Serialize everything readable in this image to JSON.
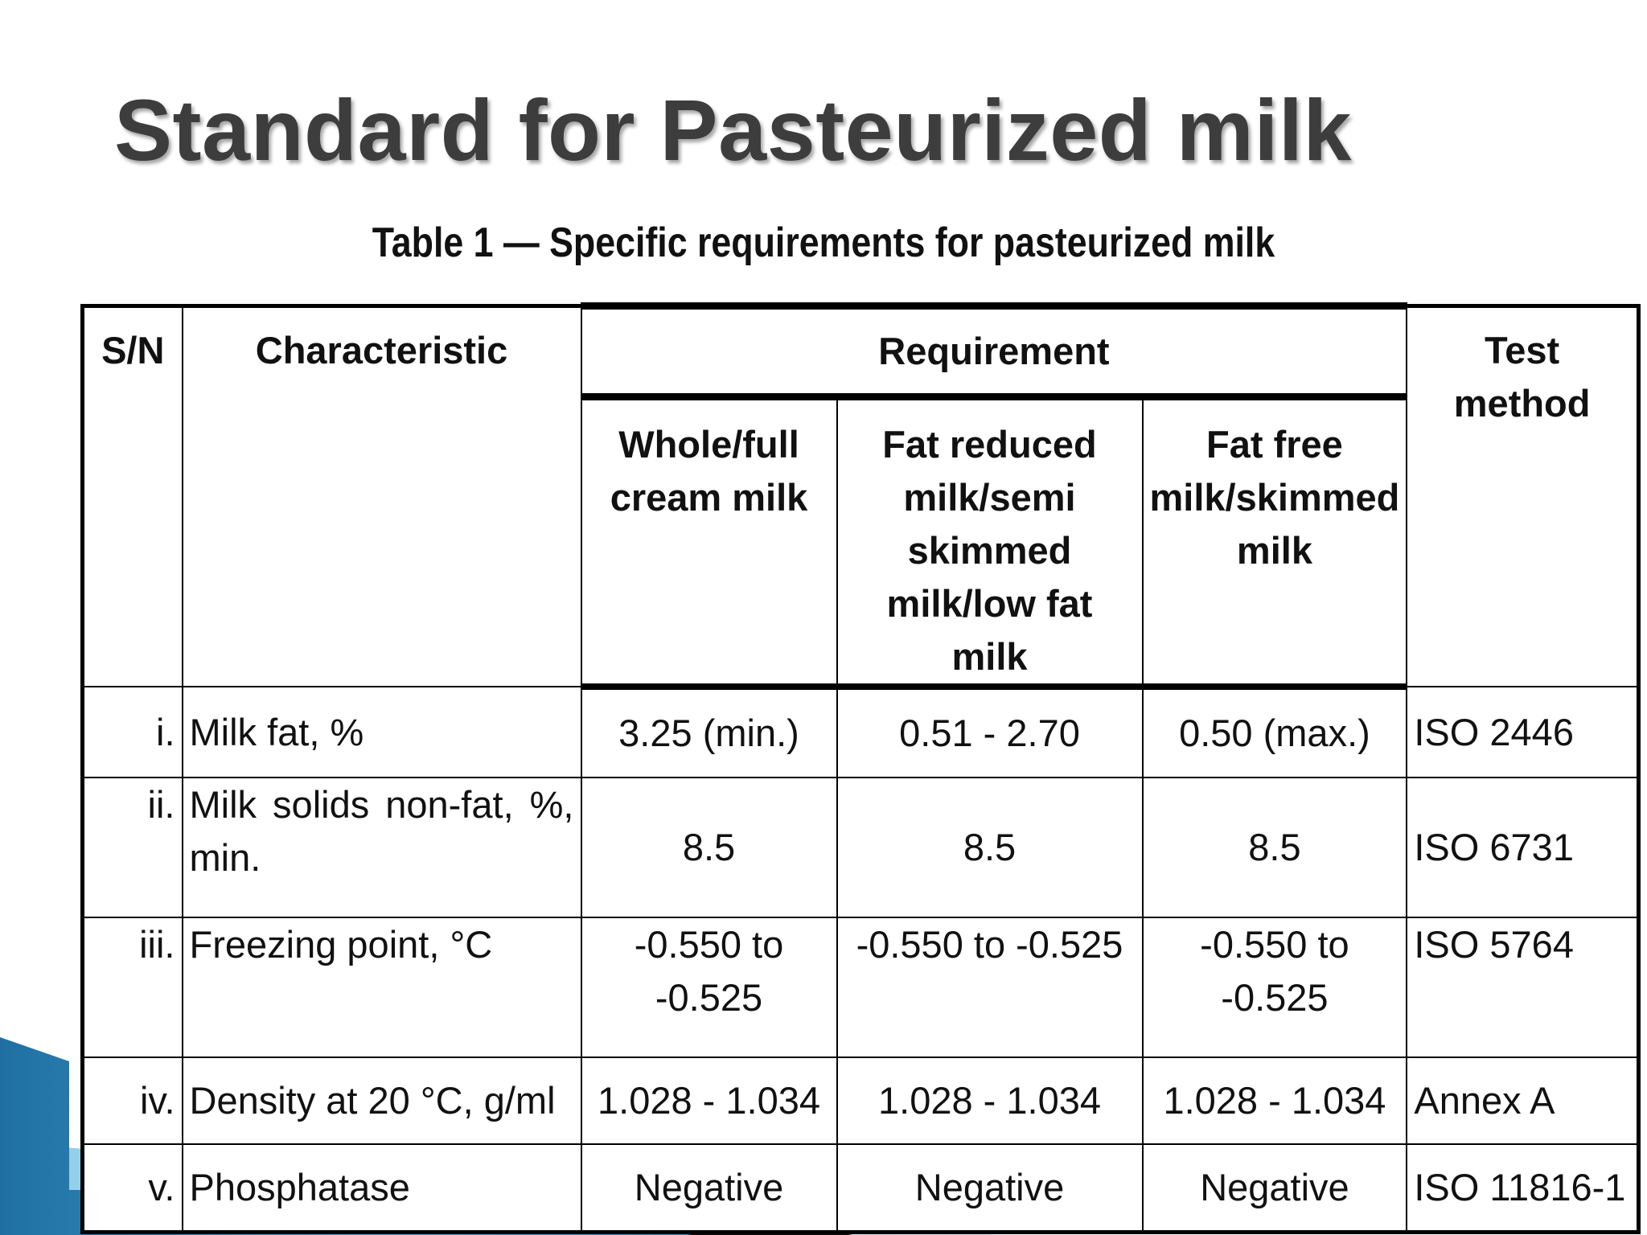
{
  "slide": {
    "title": "Standard for Pasteurized milk",
    "caption": "Table 1 — Specific requirements for pasteurized milk"
  },
  "table": {
    "headers": {
      "sn": "S/N",
      "characteristic": "Characteristic",
      "requirement": "Requirement",
      "test_method": "Test method",
      "whole": "Whole/full cream milk",
      "reduced": "Fat reduced milk/semi skimmed milk/low fat milk",
      "free": "Fat free milk/skimmed milk"
    },
    "rows": [
      {
        "sn": "i.",
        "characteristic": "Milk fat, %",
        "whole": "3.25 (min.)",
        "reduced": "0.51 - 2.70",
        "free": "0.50 (max.)",
        "method": "ISO 2446"
      },
      {
        "sn": "ii.",
        "characteristic": "Milk solids non-fat, %, min.",
        "whole": "8.5",
        "reduced": "8.5",
        "free": "8.5",
        "method": "ISO 6731"
      },
      {
        "sn": "iii.",
        "characteristic": "Freezing point, °C",
        "whole": "-0.550 to -0.525",
        "reduced": "-0.550 to -0.525",
        "free": "-0.550 to -0.525",
        "method": "ISO 5764"
      },
      {
        "sn": "iv.",
        "characteristic": "Density at 20 °C, g/ml",
        "whole": "1.028 - 1.034",
        "reduced": "1.028 - 1.034",
        "free": "1.028 - 1.034",
        "method": "Annex A"
      },
      {
        "sn": "v.",
        "characteristic": "Phosphatase",
        "whole": "Negative",
        "reduced": "Negative",
        "free": "Negative",
        "method": "ISO 11816-1"
      }
    ]
  },
  "colors": {
    "title": "#3d3d3d",
    "decor_blue": "#2a7fb0",
    "decor_light": "#7ec3e3"
  }
}
